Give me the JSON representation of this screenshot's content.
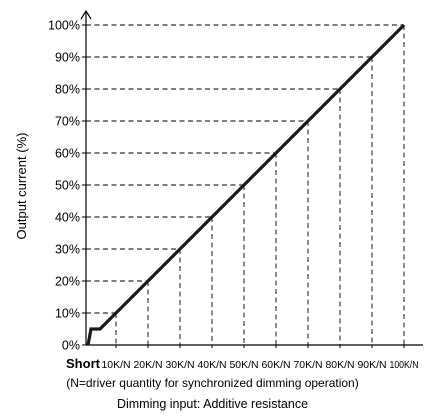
{
  "chart_data": {
    "type": "line",
    "ylabel": "Output current (%)",
    "xlabel": "Dimming input: Additive resistance",
    "note": "(N=driver quantity for synchronized dimming operation)",
    "x_categories": [
      "Short",
      "10K/N",
      "20K/N",
      "30K/N",
      "40K/N",
      "50K/N",
      "60K/N",
      "70K/N",
      "80K/N",
      "90K/N",
      "100K/N"
    ],
    "y_ticks": [
      "0%",
      "10%",
      "20%",
      "30%",
      "40%",
      "50%",
      "60%",
      "70%",
      "80%",
      "90%",
      "100%"
    ],
    "ylim": [
      0,
      100
    ],
    "grid": "dashed reference lines at each data point",
    "series": [
      {
        "points": [
          {
            "x": "Short",
            "y": 0
          },
          {
            "x": "Short",
            "y": 5
          },
          {
            "x": "Short",
            "y": 5
          },
          {
            "x": "10K/N",
            "y": 10
          },
          {
            "x": "20K/N",
            "y": 20
          },
          {
            "x": "30K/N",
            "y": 30
          },
          {
            "x": "40K/N",
            "y": 40
          },
          {
            "x": "50K/N",
            "y": 50
          },
          {
            "x": "60K/N",
            "y": 60
          },
          {
            "x": "70K/N",
            "y": 70
          },
          {
            "x": "80K/N",
            "y": 80
          },
          {
            "x": "90K/N",
            "y": 90
          },
          {
            "x": "100K/N",
            "y": 100
          }
        ],
        "color": "#1a1a1a"
      }
    ]
  }
}
